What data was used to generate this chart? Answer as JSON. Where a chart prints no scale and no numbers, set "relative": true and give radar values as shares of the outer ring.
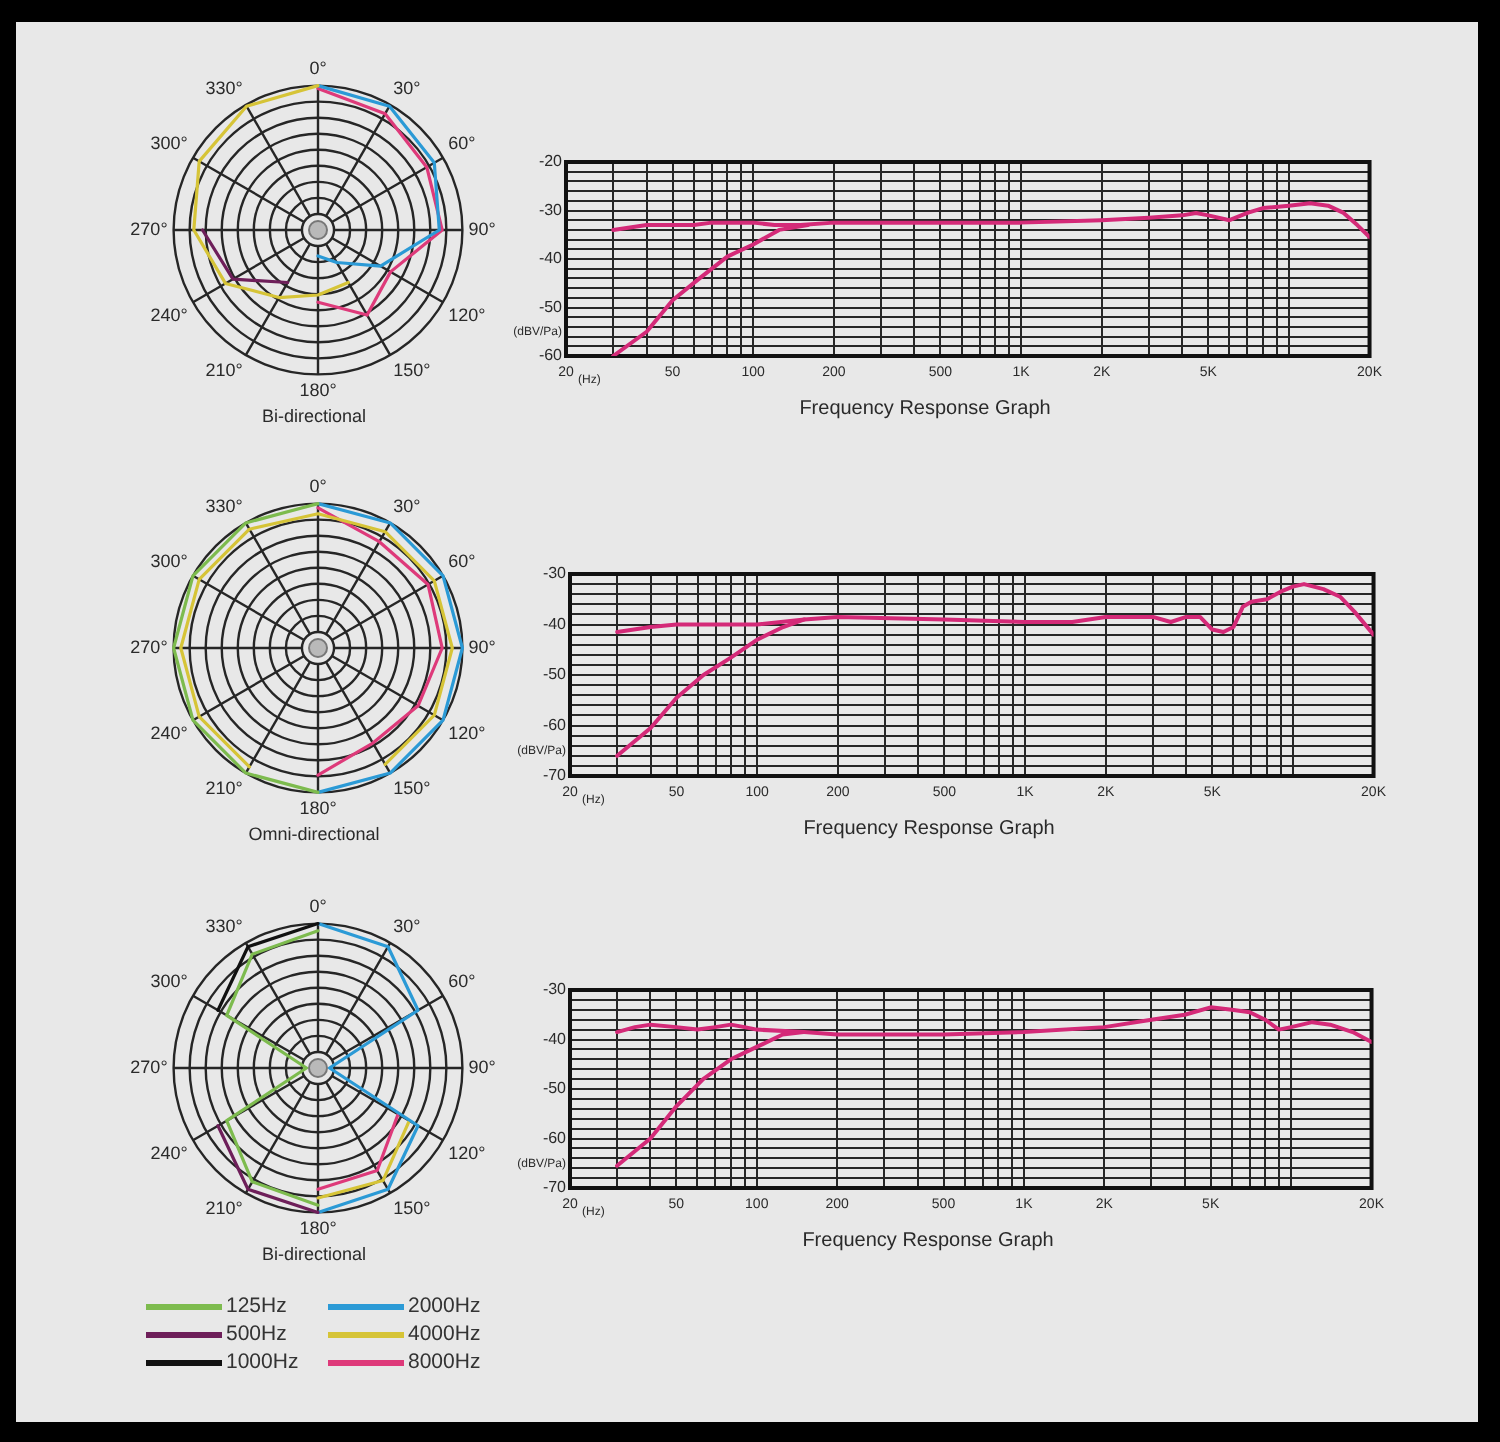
{
  "chart_data": [
    {
      "type": "radar",
      "title": "Bi-directional",
      "relative": true,
      "grid": true,
      "categories": [
        "0°",
        "30°",
        "60°",
        "90°",
        "120°",
        "150°",
        "180°",
        "210°",
        "240°",
        "270°",
        "300°",
        "330°"
      ],
      "series": [
        {
          "color": "#d6c437",
          "values": [
            1.0,
            null,
            null,
            null,
            null,
            0.42,
            0.45,
            0.54,
            0.74,
            0.86,
            0.95,
            0.99
          ]
        },
        {
          "color": "#2b9ad6",
          "values": [
            1.0,
            0.99,
            0.93,
            0.84,
            0.5,
            0.26,
            0.18,
            null,
            null,
            null,
            null,
            null
          ]
        },
        {
          "color": "#de3a7a",
          "values": [
            0.98,
            0.93,
            0.87,
            0.86,
            0.58,
            0.68,
            0.5,
            null,
            null,
            null,
            null,
            null
          ]
        },
        {
          "color": "#6e1f5a",
          "values": [
            null,
            null,
            null,
            null,
            null,
            null,
            null,
            0.42,
            0.68,
            0.8,
            null,
            null
          ]
        }
      ]
    },
    {
      "type": "line",
      "title": "Frequency Response Graph",
      "xlabel": "(Hz)",
      "ylabel": "(dBV/Pa)",
      "log": "x",
      "grid": true,
      "xlim": [
        20,
        20000
      ],
      "xticks": [
        20,
        {
          "value": 30,
          "label": null
        },
        {
          "value": 40,
          "label": null
        },
        50,
        {
          "value": 60,
          "label": null
        },
        {
          "value": 70,
          "label": null
        },
        {
          "value": 80,
          "label": null
        },
        {
          "value": 90,
          "label": null
        },
        100,
        200,
        {
          "value": 300,
          "label": null
        },
        {
          "value": 400,
          "label": null
        },
        500,
        {
          "value": 600,
          "label": null
        },
        {
          "value": 700,
          "label": null
        },
        {
          "value": 800,
          "label": null
        },
        {
          "value": 900,
          "label": null
        },
        {
          "value": 1000,
          "label": "1K"
        },
        {
          "value": 2000,
          "label": "2K"
        },
        {
          "value": 3000,
          "label": null
        },
        {
          "value": 4000,
          "label": null
        },
        {
          "value": 5000,
          "label": "5K"
        },
        {
          "value": 6000,
          "label": null
        },
        {
          "value": 7000,
          "label": null
        },
        {
          "value": 8000,
          "label": null
        },
        {
          "value": 9000,
          "label": null
        },
        {
          "value": 10000,
          "label": null
        },
        {
          "value": 20000,
          "label": "20K"
        }
      ],
      "ylim": [
        -60,
        -20
      ],
      "yticks": [
        -60,
        {
          "value": -58,
          "label": null
        },
        {
          "value": -56,
          "label": null
        },
        {
          "value": -54,
          "label": null
        },
        {
          "value": -52,
          "label": null
        },
        -50,
        {
          "value": -48,
          "label": null
        },
        {
          "value": -46,
          "label": null
        },
        {
          "value": -44,
          "label": null
        },
        {
          "value": -42,
          "label": null
        },
        -40,
        {
          "value": -38,
          "label": null
        },
        {
          "value": -36,
          "label": null
        },
        {
          "value": -34,
          "label": null
        },
        {
          "value": -32,
          "label": null
        },
        -30,
        {
          "value": -28,
          "label": null
        },
        {
          "value": -26,
          "label": null
        },
        {
          "value": -24,
          "label": null
        },
        {
          "value": -22,
          "label": null
        },
        -20
      ],
      "series": [
        {
          "color": "#d42a78",
          "x": [
            30,
            40,
            50,
            60,
            70,
            80,
            100,
            120,
            150,
            200,
            500,
            1000,
            2000,
            3000,
            4000,
            4500,
            5000,
            6000,
            7000,
            8000,
            10000,
            12000,
            14000,
            16000,
            18000,
            20000
          ],
          "values": [
            -34,
            -33,
            -33,
            -33,
            -32.5,
            -32.5,
            -32.5,
            -33,
            -33,
            -32.5,
            -32.5,
            -32.5,
            -32,
            -31.5,
            -31,
            -30.5,
            -31,
            -32,
            -30.5,
            -29.5,
            -29,
            -28.5,
            -29,
            -30.5,
            -33,
            -35.5
          ]
        },
        {
          "color": "#d42a78",
          "x": [
            30,
            40,
            50,
            63,
            80,
            100,
            125,
            160
          ],
          "values": [
            -60,
            -55,
            -48.5,
            -44,
            -39.5,
            -37,
            -34,
            -33
          ]
        }
      ]
    },
    {
      "type": "radar",
      "title": "Omni-directional",
      "relative": true,
      "grid": true,
      "categories": [
        "0°",
        "30°",
        "60°",
        "90°",
        "120°",
        "150°",
        "180°",
        "210°",
        "240°",
        "270°",
        "300°",
        "330°"
      ],
      "series": [
        {
          "color": "#7dbb4e",
          "values": [
            1.0,
            null,
            null,
            null,
            null,
            null,
            1.0,
            1.0,
            1.0,
            1.0,
            1.0,
            1.0
          ]
        },
        {
          "color": "#d6c437",
          "values": [
            0.93,
            0.93,
            0.93,
            0.93,
            0.93,
            0.93,
            null,
            0.95,
            0.95,
            0.95,
            0.95,
            0.95
          ]
        },
        {
          "color": "#2b9ad6",
          "values": [
            1.0,
            1.0,
            1.0,
            1.0,
            1.0,
            1.0,
            1.0,
            null,
            null,
            null,
            null,
            null
          ]
        },
        {
          "color": "#de3a7a",
          "values": [
            0.97,
            0.85,
            0.88,
            0.86,
            0.8,
            0.76,
            0.88,
            null,
            null,
            null,
            null,
            null
          ]
        }
      ]
    },
    {
      "type": "line",
      "title": "Frequency Response Graph",
      "xlabel": "(Hz)",
      "ylabel": "(dBV/Pa)",
      "log": "x",
      "grid": true,
      "xlim": [
        20,
        20000
      ],
      "xticks": [
        20,
        {
          "value": 30,
          "label": null
        },
        {
          "value": 40,
          "label": null
        },
        50,
        {
          "value": 60,
          "label": null
        },
        {
          "value": 70,
          "label": null
        },
        {
          "value": 80,
          "label": null
        },
        {
          "value": 90,
          "label": null
        },
        100,
        200,
        {
          "value": 300,
          "label": null
        },
        {
          "value": 400,
          "label": null
        },
        500,
        {
          "value": 600,
          "label": null
        },
        {
          "value": 700,
          "label": null
        },
        {
          "value": 800,
          "label": null
        },
        {
          "value": 900,
          "label": null
        },
        {
          "value": 1000,
          "label": "1K"
        },
        {
          "value": 2000,
          "label": "2K"
        },
        {
          "value": 3000,
          "label": null
        },
        {
          "value": 4000,
          "label": null
        },
        {
          "value": 5000,
          "label": "5K"
        },
        {
          "value": 6000,
          "label": null
        },
        {
          "value": 7000,
          "label": null
        },
        {
          "value": 8000,
          "label": null
        },
        {
          "value": 9000,
          "label": null
        },
        {
          "value": 10000,
          "label": null
        },
        {
          "value": 20000,
          "label": "20K"
        }
      ],
      "ylim": [
        -70,
        -30
      ],
      "yticks": [
        -70,
        {
          "value": -68,
          "label": null
        },
        {
          "value": -66,
          "label": null
        },
        {
          "value": -64,
          "label": null
        },
        {
          "value": -62,
          "label": null
        },
        -60,
        {
          "value": -58,
          "label": null
        },
        {
          "value": -56,
          "label": null
        },
        {
          "value": -54,
          "label": null
        },
        {
          "value": -52,
          "label": null
        },
        -50,
        {
          "value": -48,
          "label": null
        },
        {
          "value": -46,
          "label": null
        },
        {
          "value": -44,
          "label": null
        },
        {
          "value": -42,
          "label": null
        },
        -40,
        {
          "value": -38,
          "label": null
        },
        {
          "value": -36,
          "label": null
        },
        {
          "value": -34,
          "label": null
        },
        {
          "value": -32,
          "label": null
        },
        -30
      ],
      "series": [
        {
          "color": "#d42a78",
          "x": [
            30,
            40,
            50,
            100,
            150,
            200,
            500,
            1000,
            1500,
            2000,
            3000,
            3500,
            4000,
            4500,
            5000,
            5500,
            6000,
            6500,
            7000,
            8000,
            9000,
            10000,
            11000,
            13000,
            15000,
            17000,
            20000
          ],
          "values": [
            -41.5,
            -40.5,
            -40,
            -40,
            -39,
            -38.5,
            -39,
            -39.5,
            -39.5,
            -38.5,
            -38.5,
            -39.5,
            -38.5,
            -38.5,
            -41,
            -41.5,
            -40.5,
            -36.5,
            -35.5,
            -35,
            -33.5,
            -32.5,
            -32,
            -33,
            -34.5,
            -37.5,
            -42
          ]
        },
        {
          "color": "#d42a78",
          "x": [
            30,
            40,
            50,
            63,
            80,
            100,
            125,
            150
          ],
          "values": [
            -66,
            -60.5,
            -54.5,
            -50,
            -46.5,
            -43,
            -40.5,
            -39
          ]
        }
      ]
    },
    {
      "type": "radar",
      "title": "Bi-directional",
      "relative": true,
      "grid": true,
      "legend": "bottom",
      "categories": [
        "0°",
        "30°",
        "60°",
        "90°",
        "120°",
        "150°",
        "180°",
        "210°",
        "240°",
        "270°",
        "300°",
        "330°"
      ],
      "series": [
        {
          "name": "125Hz",
          "color": "#7dbb4e",
          "values": [
            0.95,
            null,
            null,
            null,
            null,
            null,
            0.95,
            0.91,
            0.73,
            0.08,
            0.73,
            0.91
          ]
        },
        {
          "name": "500Hz",
          "color": "#6e1f5a",
          "values": [
            null,
            null,
            null,
            null,
            null,
            null,
            1.0,
            0.97,
            0.8,
            null,
            null,
            null
          ]
        },
        {
          "name": "1000Hz",
          "color": "#111111",
          "values": [
            1.0,
            null,
            null,
            null,
            null,
            null,
            null,
            null,
            null,
            null,
            0.8,
            0.97
          ]
        },
        {
          "name": "2000Hz",
          "color": "#2b9ad6",
          "values": [
            1.0,
            0.97,
            0.8,
            0.08,
            0.8,
            0.97,
            1.0,
            null,
            null,
            null,
            null,
            null
          ]
        },
        {
          "name": "4000Hz",
          "color": "#d6c437",
          "values": [
            null,
            null,
            null,
            null,
            0.73,
            0.9,
            0.9,
            null,
            null,
            null,
            null,
            null
          ]
        },
        {
          "name": "8000Hz",
          "color": "#de3a7a",
          "values": [
            null,
            null,
            null,
            null,
            0.64,
            0.82,
            0.84,
            null,
            null,
            null,
            null,
            null
          ]
        }
      ]
    },
    {
      "type": "line",
      "title": "Frequency Response Graph",
      "xlabel": "(Hz)",
      "ylabel": "(dBV/Pa)",
      "log": "x",
      "grid": true,
      "xlim": [
        20,
        20000
      ],
      "xticks": [
        20,
        {
          "value": 30,
          "label": null
        },
        {
          "value": 40,
          "label": null
        },
        50,
        {
          "value": 60,
          "label": null
        },
        {
          "value": 70,
          "label": null
        },
        {
          "value": 80,
          "label": null
        },
        {
          "value": 90,
          "label": null
        },
        100,
        200,
        {
          "value": 300,
          "label": null
        },
        {
          "value": 400,
          "label": null
        },
        500,
        {
          "value": 600,
          "label": null
        },
        {
          "value": 700,
          "label": null
        },
        {
          "value": 800,
          "label": null
        },
        {
          "value": 900,
          "label": null
        },
        {
          "value": 1000,
          "label": "1K"
        },
        {
          "value": 2000,
          "label": "2K"
        },
        {
          "value": 3000,
          "label": null
        },
        {
          "value": 4000,
          "label": null
        },
        {
          "value": 5000,
          "label": "5K"
        },
        {
          "value": 6000,
          "label": null
        },
        {
          "value": 7000,
          "label": null
        },
        {
          "value": 8000,
          "label": null
        },
        {
          "value": 9000,
          "label": null
        },
        {
          "value": 10000,
          "label": null
        },
        {
          "value": 20000,
          "label": "20K"
        }
      ],
      "ylim": [
        -70,
        -30
      ],
      "yticks": [
        -70,
        {
          "value": -68,
          "label": null
        },
        {
          "value": -66,
          "label": null
        },
        {
          "value": -64,
          "label": null
        },
        {
          "value": -62,
          "label": null
        },
        -60,
        {
          "value": -58,
          "label": null
        },
        {
          "value": -56,
          "label": null
        },
        {
          "value": -54,
          "label": null
        },
        {
          "value": -52,
          "label": null
        },
        -50,
        {
          "value": -48,
          "label": null
        },
        {
          "value": -46,
          "label": null
        },
        {
          "value": -44,
          "label": null
        },
        {
          "value": -42,
          "label": null
        },
        -40,
        {
          "value": -38,
          "label": null
        },
        {
          "value": -36,
          "label": null
        },
        {
          "value": -34,
          "label": null
        },
        {
          "value": -32,
          "label": null
        },
        -30
      ],
      "series": [
        {
          "color": "#d42a78",
          "x": [
            30,
            35,
            40,
            50,
            60,
            70,
            80,
            90,
            100,
            150,
            200,
            500,
            1000,
            2000,
            3000,
            4000,
            5000,
            6000,
            7000,
            8000,
            9000,
            10000,
            12000,
            14000,
            17000,
            20000
          ],
          "values": [
            -38.5,
            -37.5,
            -37,
            -37.5,
            -38,
            -37.5,
            -37,
            -37.5,
            -38,
            -38.5,
            -39,
            -39,
            -38.5,
            -37.5,
            -36,
            -35,
            -33.5,
            -34,
            -34.5,
            -36,
            -38,
            -37.5,
            -36.5,
            -37,
            -38.5,
            -40.5
          ]
        },
        {
          "color": "#d42a78",
          "x": [
            30,
            40,
            50,
            63,
            80,
            100,
            125,
            150
          ],
          "values": [
            -65.5,
            -60,
            -53.5,
            -48,
            -44,
            -41.5,
            -39,
            -38.5
          ]
        }
      ]
    }
  ]
}
